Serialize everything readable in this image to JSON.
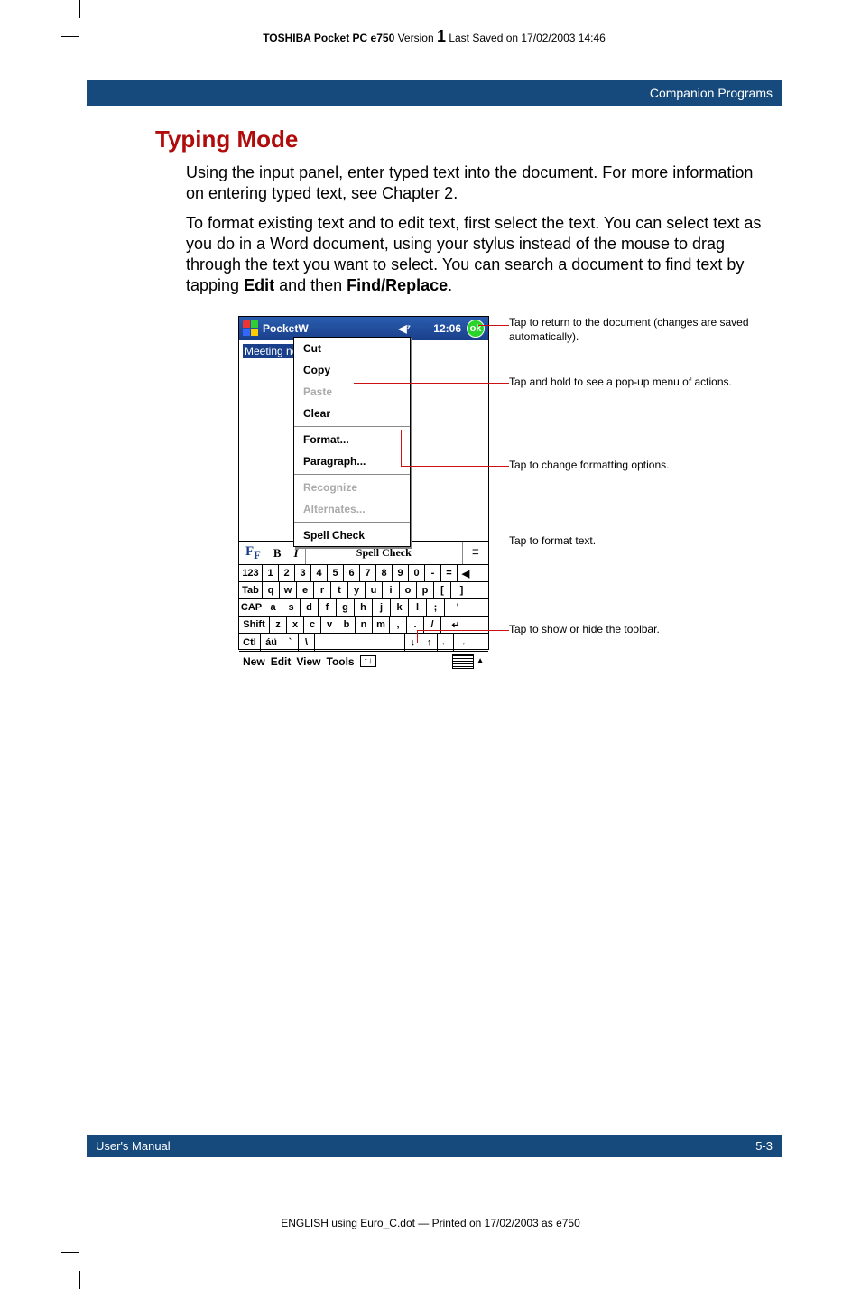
{
  "running_head": {
    "bold_part": "TOSHIBA Pocket PC e750",
    "version_label": "Version",
    "version_number": "1",
    "saved_text": "Last Saved on 17/02/2003 14:46"
  },
  "blue_bar": "Companion Programs",
  "section_title": "Typing Mode",
  "para1": "Using the input panel, enter typed text into the document. For more information on entering typed text, see Chapter 2.",
  "para2_a": "To format existing text and to edit text, first select the text. You can select text as you do in a Word document, using your stylus instead of the mouse to drag through the text you want to select. You can search a document to find text by tapping ",
  "para2_b": "Edit",
  "para2_c": " and then ",
  "para2_d": "Find/Replace",
  "para2_e": ".",
  "ppc": {
    "app_title_a": "Pocket ",
    "app_title_b": "W",
    "speaker_glyph": "◀ᶻ",
    "time": "12:06",
    "ok": "ok",
    "selected_text": "Meeting not",
    "menu": {
      "cut": "Cut",
      "copy": "Copy",
      "paste": "Paste",
      "clear": "Clear",
      "format": "Format...",
      "paragraph": "Paragraph...",
      "recognize": "Recognize",
      "alternates": "Alternates...",
      "spell": "Spell Check"
    },
    "toolbar": {
      "font_btn": "F",
      "font_sub": "F",
      "bold": "B",
      "italic": "I",
      "list_icon": "≡"
    },
    "kb": {
      "r1": [
        "123",
        "1",
        "2",
        "3",
        "4",
        "5",
        "6",
        "7",
        "8",
        "9",
        "0",
        "-",
        "=",
        "◀"
      ],
      "r2": [
        "Tab",
        "q",
        "w",
        "e",
        "r",
        "t",
        "y",
        "u",
        "i",
        "o",
        "p",
        "[",
        "]"
      ],
      "r3": [
        "CAP",
        "a",
        "s",
        "d",
        "f",
        "g",
        "h",
        "j",
        "k",
        "l",
        ";",
        "'"
      ],
      "r4": [
        "Shift",
        "z",
        "x",
        "c",
        "v",
        "b",
        "n",
        "m",
        ",",
        ".",
        "/",
        "↵"
      ],
      "r5": [
        "Ctl",
        "áü",
        "`",
        "\\",
        "",
        "↓",
        "↑",
        "←",
        "→"
      ]
    },
    "bottom": {
      "new": "New",
      "edit": "Edit",
      "view": "View",
      "tools": "Tools",
      "up_arrow": "↑↓",
      "tri": "▲"
    }
  },
  "callouts": {
    "c1": "Tap to return to the document (changes are saved automatically).",
    "c2": "Tap and hold to see a pop-up menu of actions.",
    "c3": "Tap to change formatting options.",
    "c4": "Tap to format text.",
    "c5": "Tap to show or hide the toolbar."
  },
  "footer": {
    "left": "User's Manual",
    "right": "5-3"
  },
  "print_note": "ENGLISH using Euro_C.dot — Printed on 17/02/2003 as e750",
  "colors": {
    "blue_bar": "#174a7c",
    "title_red": "#b10c0c",
    "callout_line": "#c11"
  }
}
